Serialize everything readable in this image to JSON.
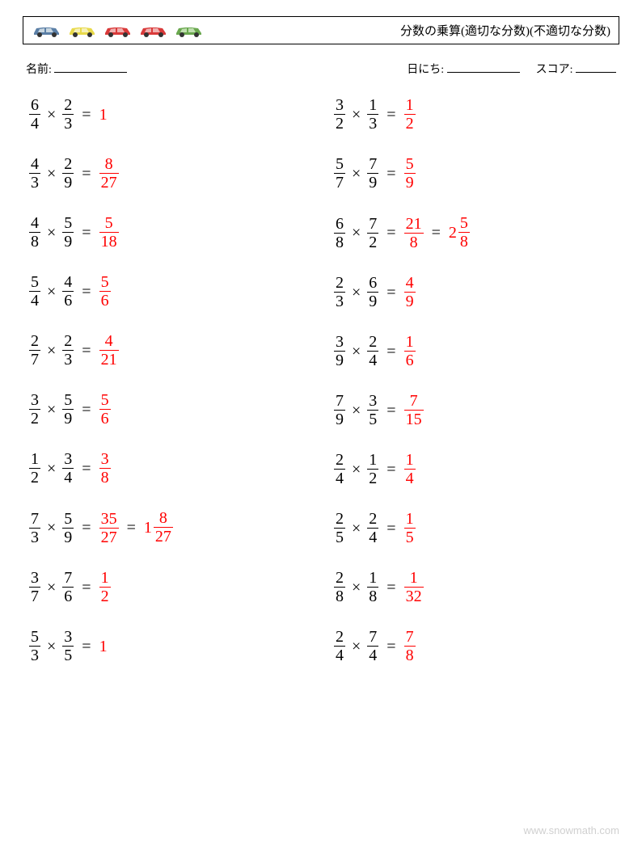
{
  "title": "分数の乗算(適切な分数)(不適切な分数)",
  "labels": {
    "name": "名前:",
    "date": "日にち:",
    "score": "スコア:"
  },
  "watermark": "www.snowmath.com",
  "operator": "×",
  "equals": "=",
  "answer_color": "#ff0000",
  "text_color": "#000000",
  "cars": [
    {
      "body": "#5b7fa6",
      "window": "#c8d6e0"
    },
    {
      "body": "#e8d94a",
      "window": "#f5f0b8"
    },
    {
      "body": "#d93a3a",
      "window": "#f0b0b0"
    },
    {
      "body": "#d93a3a",
      "window": "#f0b0b0"
    },
    {
      "body": "#6aa84f",
      "window": "#c0dfb0"
    }
  ],
  "columns": [
    [
      {
        "a": {
          "n": "6",
          "d": "4"
        },
        "b": {
          "n": "2",
          "d": "3"
        },
        "ans": [
          {
            "type": "int",
            "v": "1"
          }
        ]
      },
      {
        "a": {
          "n": "4",
          "d": "3"
        },
        "b": {
          "n": "2",
          "d": "9"
        },
        "ans": [
          {
            "type": "frac",
            "n": "8",
            "d": "27"
          }
        ]
      },
      {
        "a": {
          "n": "4",
          "d": "8"
        },
        "b": {
          "n": "5",
          "d": "9"
        },
        "ans": [
          {
            "type": "frac",
            "n": "5",
            "d": "18"
          }
        ]
      },
      {
        "a": {
          "n": "5",
          "d": "4"
        },
        "b": {
          "n": "4",
          "d": "6"
        },
        "ans": [
          {
            "type": "frac",
            "n": "5",
            "d": "6"
          }
        ]
      },
      {
        "a": {
          "n": "2",
          "d": "7"
        },
        "b": {
          "n": "2",
          "d": "3"
        },
        "ans": [
          {
            "type": "frac",
            "n": "4",
            "d": "21"
          }
        ]
      },
      {
        "a": {
          "n": "3",
          "d": "2"
        },
        "b": {
          "n": "5",
          "d": "9"
        },
        "ans": [
          {
            "type": "frac",
            "n": "5",
            "d": "6"
          }
        ]
      },
      {
        "a": {
          "n": "1",
          "d": "2"
        },
        "b": {
          "n": "3",
          "d": "4"
        },
        "ans": [
          {
            "type": "frac",
            "n": "3",
            "d": "8"
          }
        ]
      },
      {
        "a": {
          "n": "7",
          "d": "3"
        },
        "b": {
          "n": "5",
          "d": "9"
        },
        "ans": [
          {
            "type": "frac",
            "n": "35",
            "d": "27"
          },
          {
            "type": "mixed",
            "w": "1",
            "n": "8",
            "d": "27"
          }
        ]
      },
      {
        "a": {
          "n": "3",
          "d": "7"
        },
        "b": {
          "n": "7",
          "d": "6"
        },
        "ans": [
          {
            "type": "frac",
            "n": "1",
            "d": "2"
          }
        ]
      },
      {
        "a": {
          "n": "5",
          "d": "3"
        },
        "b": {
          "n": "3",
          "d": "5"
        },
        "ans": [
          {
            "type": "int",
            "v": "1"
          }
        ]
      }
    ],
    [
      {
        "a": {
          "n": "3",
          "d": "2"
        },
        "b": {
          "n": "1",
          "d": "3"
        },
        "ans": [
          {
            "type": "frac",
            "n": "1",
            "d": "2"
          }
        ]
      },
      {
        "a": {
          "n": "5",
          "d": "7"
        },
        "b": {
          "n": "7",
          "d": "9"
        },
        "ans": [
          {
            "type": "frac",
            "n": "5",
            "d": "9"
          }
        ]
      },
      {
        "a": {
          "n": "6",
          "d": "8"
        },
        "b": {
          "n": "7",
          "d": "2"
        },
        "ans": [
          {
            "type": "frac",
            "n": "21",
            "d": "8"
          },
          {
            "type": "mixed",
            "w": "2",
            "n": "5",
            "d": "8"
          }
        ]
      },
      {
        "a": {
          "n": "2",
          "d": "3"
        },
        "b": {
          "n": "6",
          "d": "9"
        },
        "ans": [
          {
            "type": "frac",
            "n": "4",
            "d": "9"
          }
        ]
      },
      {
        "a": {
          "n": "3",
          "d": "9"
        },
        "b": {
          "n": "2",
          "d": "4"
        },
        "ans": [
          {
            "type": "frac",
            "n": "1",
            "d": "6"
          }
        ]
      },
      {
        "a": {
          "n": "7",
          "d": "9"
        },
        "b": {
          "n": "3",
          "d": "5"
        },
        "ans": [
          {
            "type": "frac",
            "n": "7",
            "d": "15"
          }
        ]
      },
      {
        "a": {
          "n": "2",
          "d": "4"
        },
        "b": {
          "n": "1",
          "d": "2"
        },
        "ans": [
          {
            "type": "frac",
            "n": "1",
            "d": "4"
          }
        ]
      },
      {
        "a": {
          "n": "2",
          "d": "5"
        },
        "b": {
          "n": "2",
          "d": "4"
        },
        "ans": [
          {
            "type": "frac",
            "n": "1",
            "d": "5"
          }
        ]
      },
      {
        "a": {
          "n": "2",
          "d": "8"
        },
        "b": {
          "n": "1",
          "d": "8"
        },
        "ans": [
          {
            "type": "frac",
            "n": "1",
            "d": "32"
          }
        ]
      },
      {
        "a": {
          "n": "2",
          "d": "4"
        },
        "b": {
          "n": "7",
          "d": "4"
        },
        "ans": [
          {
            "type": "frac",
            "n": "7",
            "d": "8"
          }
        ]
      }
    ]
  ]
}
